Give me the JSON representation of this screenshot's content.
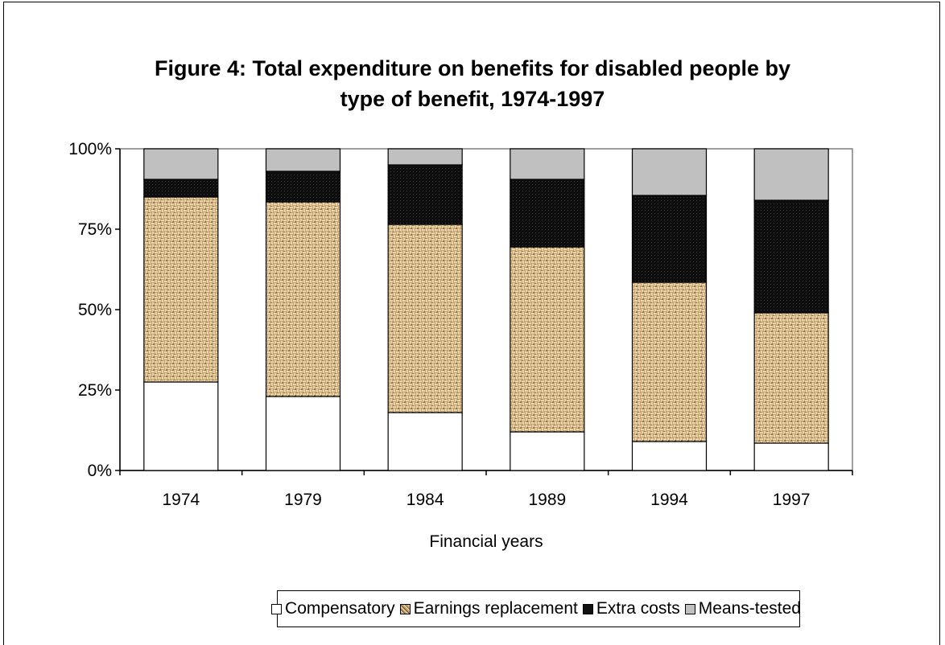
{
  "chart_data": {
    "type": "bar",
    "stacked": true,
    "percent": true,
    "title_lines": [
      "Figure 4: Total expenditure on benefits for disabled people by",
      "type of benefit, 1974-1997"
    ],
    "xlabel": "Financial years",
    "ylabel": "",
    "ylim": [
      0,
      100
    ],
    "y_ticks": [
      "0%",
      "25%",
      "50%",
      "75%",
      "100%"
    ],
    "categories": [
      "1974",
      "1979",
      "1984",
      "1989",
      "1994",
      "1997"
    ],
    "series": [
      {
        "name": "Compensatory",
        "values": [
          27.5,
          23,
          18,
          12,
          9,
          8.5
        ],
        "color": "#ffffff",
        "pattern": "none"
      },
      {
        "name": "Earnings replacement",
        "values": [
          57.5,
          60.5,
          58.5,
          57.5,
          49.5,
          40.5
        ],
        "color": "#c9a56e",
        "pattern": "weave"
      },
      {
        "name": "Extra costs",
        "values": [
          5.5,
          9.5,
          18.5,
          21,
          27,
          35
        ],
        "color": "#111111",
        "pattern": "dark"
      },
      {
        "name": "Means-tested",
        "values": [
          9.5,
          7,
          5,
          9.5,
          14.5,
          16
        ],
        "color": "#c0c0c0",
        "pattern": "none"
      }
    ],
    "legend_position": "bottom",
    "grid": false
  }
}
